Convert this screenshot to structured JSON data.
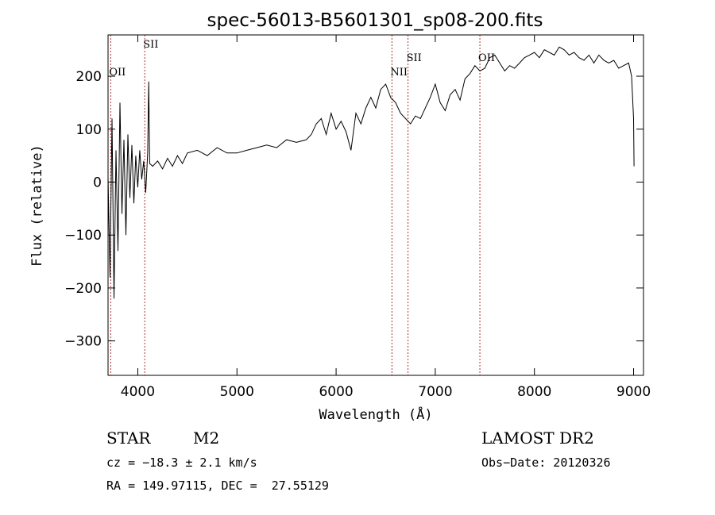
{
  "chart_data": {
    "type": "line",
    "title": "spec-56013-B5601301_sp08-200.fits",
    "xlabel": "Wavelength (Å)",
    "ylabel": "Flux (relative)",
    "xlim": [
      3700,
      9100
    ],
    "ylim": [
      -365,
      278
    ],
    "xticks": [
      4000,
      5000,
      6000,
      7000,
      8000,
      9000
    ],
    "yticks": [
      -300,
      -200,
      -100,
      0,
      100,
      200
    ],
    "spectrum": {
      "x": [
        3700,
        3720,
        3740,
        3760,
        3780,
        3800,
        3820,
        3840,
        3860,
        3880,
        3900,
        3920,
        3940,
        3960,
        3980,
        4000,
        4020,
        4040,
        4060,
        4080,
        4100,
        4110,
        4120,
        4150,
        4200,
        4250,
        4300,
        4350,
        4400,
        4450,
        4500,
        4600,
        4700,
        4800,
        4900,
        5000,
        5100,
        5200,
        5300,
        5400,
        5500,
        5600,
        5700,
        5750,
        5800,
        5850,
        5900,
        5950,
        6000,
        6050,
        6100,
        6150,
        6200,
        6250,
        6300,
        6350,
        6400,
        6450,
        6500,
        6550,
        6600,
        6650,
        6700,
        6750,
        6800,
        6850,
        6900,
        6950,
        7000,
        7050,
        7100,
        7150,
        7200,
        7250,
        7300,
        7350,
        7400,
        7450,
        7500,
        7550,
        7600,
        7650,
        7700,
        7750,
        7800,
        7850,
        7900,
        7950,
        8000,
        8050,
        8100,
        8150,
        8200,
        8250,
        8300,
        8350,
        8400,
        8450,
        8500,
        8550,
        8600,
        8650,
        8700,
        8750,
        8800,
        8850,
        8900,
        8950,
        8980,
        9000,
        9005
      ],
      "y": [
        10,
        -180,
        120,
        -220,
        60,
        -130,
        150,
        -60,
        80,
        -100,
        90,
        -30,
        70,
        -40,
        50,
        -10,
        60,
        5,
        40,
        -20,
        55,
        190,
        35,
        30,
        40,
        25,
        45,
        30,
        50,
        35,
        55,
        60,
        50,
        65,
        55,
        55,
        60,
        65,
        70,
        65,
        80,
        75,
        80,
        90,
        110,
        120,
        90,
        130,
        100,
        115,
        95,
        60,
        130,
        110,
        140,
        160,
        140,
        175,
        185,
        160,
        150,
        130,
        120,
        110,
        125,
        120,
        140,
        160,
        185,
        150,
        135,
        165,
        175,
        155,
        195,
        205,
        220,
        210,
        215,
        235,
        240,
        225,
        210,
        220,
        215,
        225,
        235,
        240,
        245,
        235,
        250,
        245,
        240,
        255,
        250,
        240,
        245,
        235,
        230,
        240,
        225,
        240,
        230,
        225,
        230,
        215,
        220,
        225,
        200,
        120,
        30
      ]
    },
    "lines": [
      {
        "label": "OII",
        "x": 3727
      },
      {
        "label": "SII",
        "x": 4070
      },
      {
        "label": "NII",
        "x": 6563
      },
      {
        "label": "SII",
        "x": 6725
      },
      {
        "label": "OII",
        "x": 7450
      }
    ]
  },
  "info": {
    "class": "STAR",
    "subclass": "M2",
    "survey": "LAMOST DR2",
    "cz": "cz = −18.3 ± 2.1 km/s",
    "obs_date": "Obs−Date: 20120326",
    "coords": "RA = 149.97115, DEC =  27.55129"
  }
}
